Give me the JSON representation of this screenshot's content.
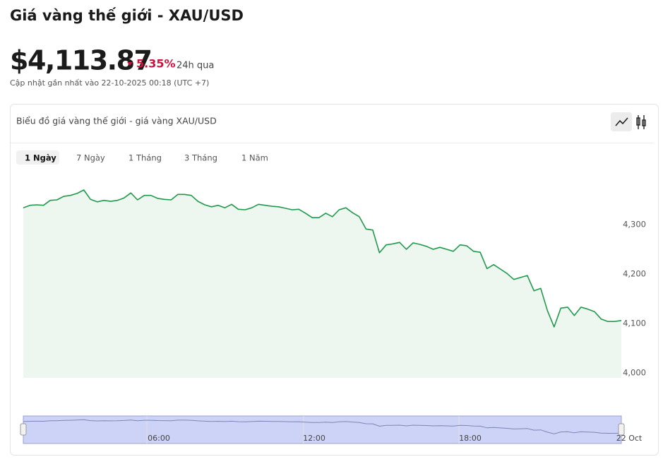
{
  "header": {
    "title": "Giá vàng thế giới - XAU/USD",
    "price": "$4,113.87",
    "change": "5.35%",
    "change_period": "24h qua",
    "updated": "Cập nhật gần nhất vào 22-10-2025 00:18 (UTC +7)"
  },
  "chart_data": {
    "type": "area",
    "title": "Biểu đồ giá vàng thế giới - giá vàng XAU/USD",
    "tabs": [
      "1 Ngày",
      "7 Ngày",
      "1 Tháng",
      "3 Tháng",
      "1 Năm"
    ],
    "values": [
      4334,
      4339,
      4340,
      4339,
      4349,
      4350,
      4357,
      4359,
      4363,
      4370,
      4351,
      4346,
      4349,
      4347,
      4349,
      4354,
      4364,
      4350,
      4359,
      4359,
      4353,
      4351,
      4350,
      4361,
      4361,
      4359,
      4347,
      4340,
      4336,
      4339,
      4334,
      4341,
      4331,
      4330,
      4334,
      4341,
      4339,
      4337,
      4336,
      4333,
      4330,
      4331,
      4323,
      4314,
      4314,
      4323,
      4316,
      4330,
      4334,
      4324,
      4316,
      4291,
      4289,
      4243,
      4259,
      4261,
      4264,
      4250,
      4263,
      4260,
      4256,
      4250,
      4254,
      4250,
      4246,
      4259,
      4257,
      4246,
      4244,
      4211,
      4219,
      4210,
      4201,
      4189,
      4193,
      4197,
      4166,
      4171,
      4126,
      4093,
      4131,
      4133,
      4116,
      4133,
      4129,
      4124,
      4109,
      4104,
      4104,
      4106
    ],
    "color": "#1f9a4c",
    "ylim": [
      3990,
      4400
    ],
    "yticks": [
      {
        "value": 4000,
        "label": "4,000"
      },
      {
        "value": 4100,
        "label": "4,100"
      },
      {
        "value": 4200,
        "label": "4,200"
      },
      {
        "value": 4300,
        "label": "4,300"
      }
    ],
    "navigator_labels": [
      "06:00",
      "12:00",
      "18:00",
      "22 Oct"
    ]
  }
}
